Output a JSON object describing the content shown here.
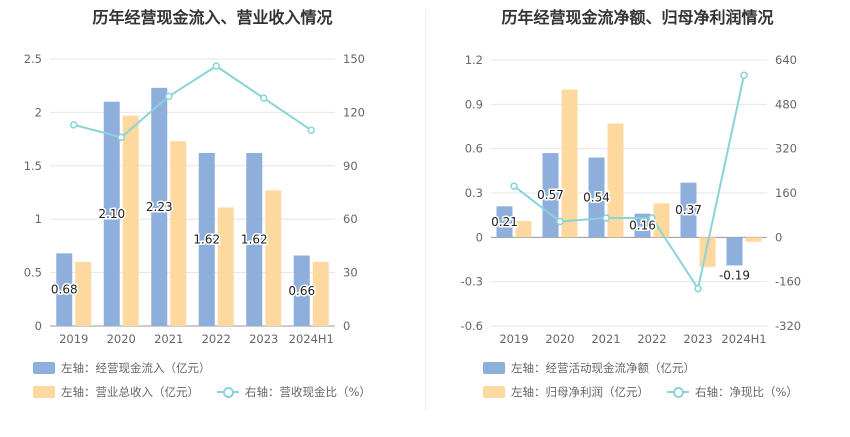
{
  "chart_data": [
    {
      "type": "bar",
      "title": "历年经营现金流入、营业收入情况",
      "categories": [
        "2019",
        "2020",
        "2021",
        "2022",
        "2023",
        "2024H1"
      ],
      "left_axis": {
        "ylim": [
          0,
          2.5
        ],
        "ticks": [
          "0",
          "0.5",
          "1",
          "1.5",
          "2",
          "2.5"
        ]
      },
      "right_axis": {
        "ylim": [
          0,
          150
        ],
        "ticks": [
          "0",
          "30",
          "60",
          "90",
          "120",
          "150"
        ]
      },
      "series": [
        {
          "name": "左轴：经营现金流入（亿元）",
          "axis": "left",
          "kind": "bar",
          "color": "#8eaedc",
          "values": [
            0.68,
            2.1,
            2.23,
            1.62,
            1.62,
            0.66
          ],
          "labels": [
            "0.68",
            "2.10",
            "2.23",
            "1.62",
            "1.62",
            "0.66"
          ]
        },
        {
          "name": "左轴：营业总收入（亿元）",
          "axis": "left",
          "kind": "bar",
          "color": "#fdd9a0",
          "values": [
            0.6,
            1.97,
            1.73,
            1.11,
            1.27,
            0.6
          ]
        },
        {
          "name": "右轴：营收现金比（%）",
          "axis": "right",
          "kind": "line",
          "color": "#8ad4d8",
          "values": [
            113,
            106,
            129,
            146,
            128,
            110
          ]
        }
      ],
      "grid": true,
      "legend_position": "bottom-left"
    },
    {
      "type": "bar",
      "title": "历年经营现金流净额、归母净利润情况",
      "categories": [
        "2019",
        "2020",
        "2021",
        "2022",
        "2023",
        "2024H1"
      ],
      "left_axis": {
        "ylim": [
          -0.6,
          1.2
        ],
        "ticks": [
          "-0.6",
          "-0.3",
          "0",
          "0.3",
          "0.6",
          "0.9",
          "1.2"
        ]
      },
      "right_axis": {
        "ylim": [
          -320,
          640
        ],
        "ticks": [
          "-320",
          "-160",
          "0",
          "160",
          "320",
          "480",
          "640"
        ]
      },
      "series": [
        {
          "name": "左轴：经营活动现金流净额（亿元）",
          "axis": "left",
          "kind": "bar",
          "color": "#8eaedc",
          "values": [
            0.21,
            0.57,
            0.54,
            0.16,
            0.37,
            -0.19
          ],
          "labels": [
            "0.21",
            "0.57",
            "0.54",
            "0.16",
            "0.37",
            "-0.19"
          ]
        },
        {
          "name": "左轴：归母净利润（亿元）",
          "axis": "left",
          "kind": "bar",
          "color": "#fdd9a0",
          "values": [
            0.11,
            1.0,
            0.77,
            0.23,
            -0.2,
            -0.03
          ]
        },
        {
          "name": "右轴：净现比（%）",
          "axis": "right",
          "kind": "line",
          "color": "#8ad4d8",
          "values": [
            185,
            57,
            70,
            70,
            -185,
            585
          ]
        }
      ],
      "grid": true,
      "legend_position": "bottom-left"
    }
  ]
}
